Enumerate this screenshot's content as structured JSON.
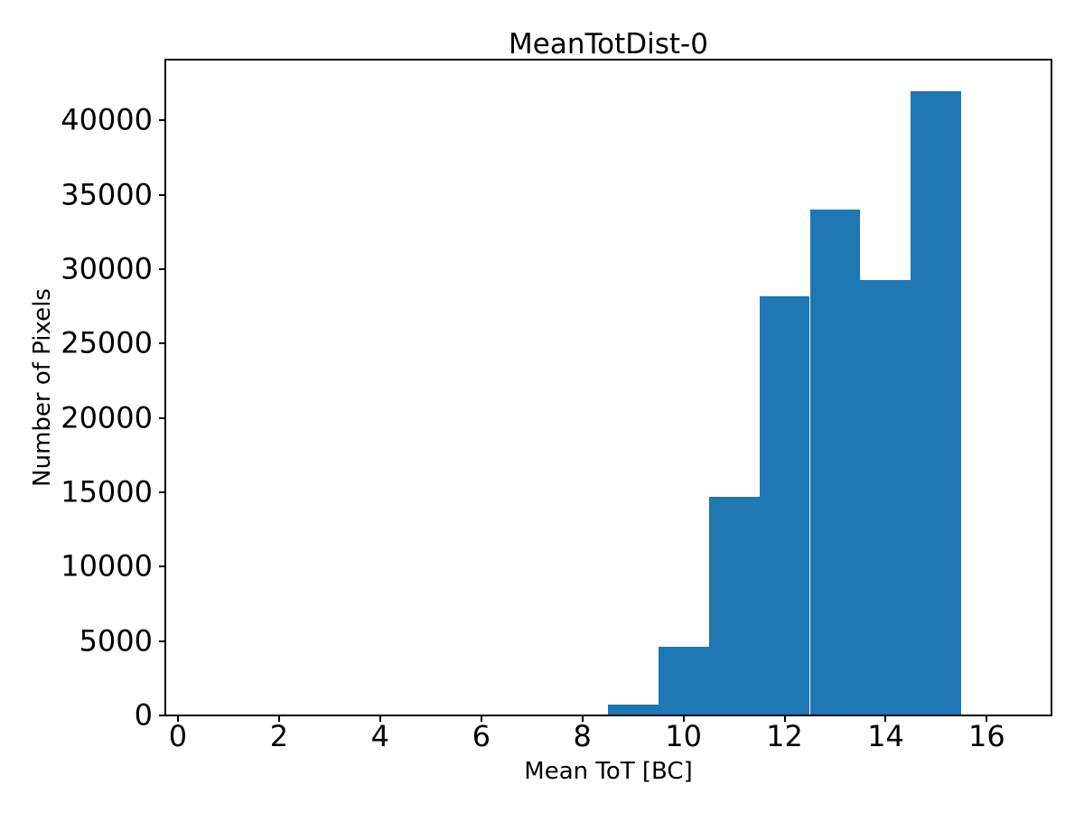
{
  "chart_data": {
    "type": "bar",
    "subtype": "histogram",
    "title": "MeanTotDist-0",
    "xlabel": "Mean ToT [BC]",
    "ylabel": "Number of Pixels",
    "bin_edges": [
      1.5,
      2.5,
      3.5,
      4.5,
      5.5,
      6.5,
      7.5,
      8.5,
      9.5,
      10.5,
      11.5,
      12.5,
      13.5,
      14.5,
      15.5
    ],
    "counts": [
      60,
      60,
      60,
      60,
      60,
      60,
      60,
      700,
      4600,
      14700,
      28200,
      34000,
      29300,
      41950
    ],
    "bar_color": "#1f77b4",
    "axis_color": "#000000",
    "background_color": "#ffffff",
    "xlim": [
      -0.25,
      17.28
    ],
    "ylim": [
      0,
      44100
    ],
    "x_ticks": [
      0,
      2,
      4,
      6,
      8,
      10,
      12,
      14,
      16
    ],
    "y_ticks": [
      0,
      5000,
      10000,
      15000,
      20000,
      25000,
      30000,
      35000,
      40000
    ],
    "grid": false,
    "legend": null
  }
}
